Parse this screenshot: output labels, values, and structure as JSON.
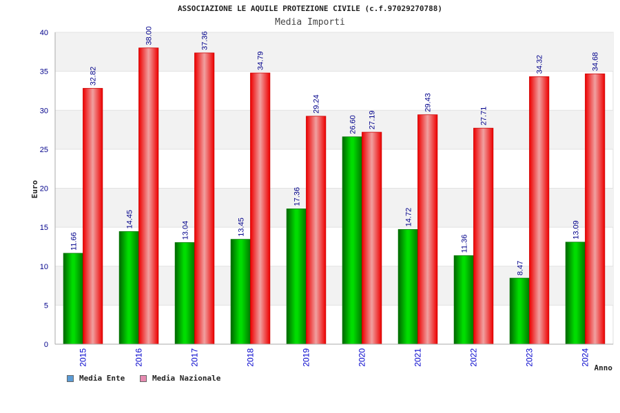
{
  "header": {
    "title": "ASSOCIAZIONE LE AQUILE PROTEZIONE CIVILE (c.f.97029270788)"
  },
  "legend": {
    "items": [
      {
        "label": "Media Ente",
        "color": "#5b9bd5"
      },
      {
        "label": "Media Nazionale",
        "color": "#e68ab0"
      }
    ]
  },
  "chart_data": {
    "type": "bar",
    "title": "Media Importi",
    "xlabel": "Anno",
    "ylabel": "Euro",
    "ylim": [
      0,
      40
    ],
    "yticks": [
      0,
      5,
      10,
      15,
      20,
      25,
      30,
      35,
      40
    ],
    "grid": true,
    "legend_position": "bottom-left",
    "categories": [
      "2015",
      "2016",
      "2017",
      "2018",
      "2019",
      "2020",
      "2021",
      "2022",
      "2023",
      "2024"
    ],
    "series": [
      {
        "name": "Media Ente",
        "color": "#00aa00",
        "values": [
          11.66,
          14.45,
          13.04,
          13.45,
          17.36,
          26.6,
          14.72,
          11.36,
          8.47,
          13.09
        ],
        "labels": [
          "11.66",
          "14.45",
          "13.04",
          "13.45",
          "17.36",
          "26.60",
          "14.72",
          "11.36",
          "8.47",
          "13.09"
        ]
      },
      {
        "name": "Media Nazionale",
        "color": "#ee1111",
        "values": [
          32.82,
          38.0,
          37.36,
          34.79,
          29.24,
          27.19,
          29.43,
          27.71,
          34.32,
          34.68
        ],
        "labels": [
          "32.82",
          "38.00",
          "37.36",
          "34.79",
          "29.24",
          "27.19",
          "29.43",
          "27.71",
          "34.32",
          "34.68"
        ]
      }
    ]
  }
}
